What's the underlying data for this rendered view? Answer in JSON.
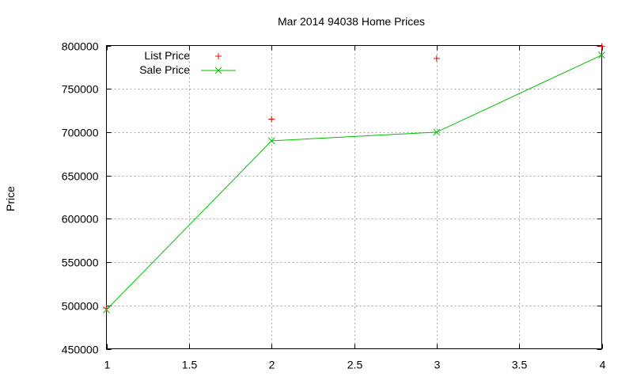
{
  "chart_data": {
    "type": "line",
    "title": "Mar 2014 94038 Home Prices",
    "xlabel": "",
    "ylabel": "Price",
    "xlim": [
      1,
      4
    ],
    "ylim": [
      450000,
      800000
    ],
    "x_ticks": [
      1,
      1.5,
      2,
      2.5,
      3,
      3.5,
      4
    ],
    "x_tick_labels": [
      "1",
      "1.5",
      "2",
      "2.5",
      "3",
      "3.5",
      "4"
    ],
    "y_ticks": [
      450000,
      500000,
      550000,
      600000,
      650000,
      700000,
      750000,
      800000
    ],
    "y_tick_labels": [
      "450000",
      "500000",
      "550000",
      "600000",
      "650000",
      "700000",
      "750000",
      "800000"
    ],
    "grid": true,
    "legend_position": "top-left (inside)",
    "x": [
      1,
      2,
      3,
      4
    ],
    "series": [
      {
        "name": "List Price",
        "style": "points",
        "marker": "+",
        "color": "#ff0000",
        "values": [
          497000,
          715000,
          785000,
          799000
        ]
      },
      {
        "name": "Sale Price",
        "style": "linespoints",
        "marker": "x",
        "color": "#00c000",
        "values": [
          495000,
          690000,
          700000,
          789000
        ]
      }
    ]
  },
  "colors": {
    "grid": "#a0a0a0",
    "axis": "#000000",
    "background": "#ffffff"
  }
}
